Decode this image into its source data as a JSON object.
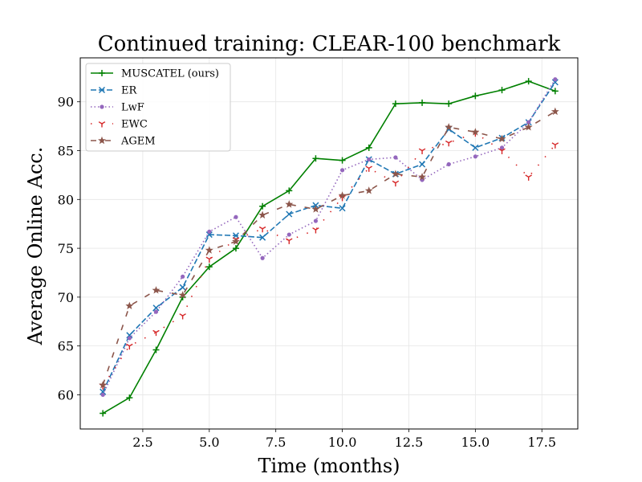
{
  "chart_data": {
    "type": "line",
    "title": "Continued training: CLEAR-100 benchmark",
    "xlabel": "Time (months)",
    "ylabel": "Average Online Acc.",
    "xlim": [
      0.15,
      18.85
    ],
    "ylim": [
      56.5,
      94.5
    ],
    "xticks": [
      2.5,
      5.0,
      7.5,
      10.0,
      12.5,
      15.0,
      17.5
    ],
    "xtick_labels": [
      "2.5",
      "5.0",
      "7.5",
      "10.0",
      "12.5",
      "15.0",
      "17.5"
    ],
    "yticks": [
      60,
      65,
      70,
      75,
      80,
      85,
      90
    ],
    "ytick_labels": [
      "60",
      "65",
      "70",
      "75",
      "80",
      "85",
      "90"
    ],
    "grid": true,
    "legend_position": "top-left",
    "x": [
      1,
      2,
      3,
      4,
      5,
      6,
      7,
      8,
      9,
      10,
      11,
      12,
      13,
      14,
      15,
      16,
      17,
      18
    ],
    "series": [
      {
        "name": "MUSCATEL (ours)",
        "color": "#008000",
        "dash": "solid",
        "marker": "plus",
        "values": [
          58.1,
          59.7,
          64.6,
          70.0,
          73.1,
          75.0,
          79.3,
          80.9,
          84.2,
          84.0,
          85.3,
          89.8,
          89.9,
          89.8,
          90.6,
          91.2,
          92.1,
          91.1
        ]
      },
      {
        "name": "ER",
        "color": "#1f77b4",
        "dash": "dashed",
        "marker": "x",
        "values": [
          60.3,
          66.1,
          68.9,
          71.0,
          76.4,
          76.3,
          76.1,
          78.5,
          79.4,
          79.1,
          84.1,
          82.6,
          83.6,
          87.2,
          85.3,
          86.3,
          87.9,
          92.0
        ]
      },
      {
        "name": "LwF",
        "color": "#9467bd",
        "dash": "dotted",
        "marker": "dot",
        "values": [
          60.0,
          65.8,
          68.5,
          72.1,
          76.7,
          78.2,
          74.0,
          76.4,
          77.8,
          83.0,
          84.1,
          84.3,
          82.0,
          83.6,
          84.4,
          85.3,
          87.9,
          92.3
        ]
      },
      {
        "name": "EWC",
        "color": "#d62728",
        "dash": "dashdot",
        "marker": "tri",
        "values": [
          60.9,
          65.0,
          66.4,
          68.1,
          73.9,
          75.9,
          77.0,
          75.8,
          76.9,
          80.2,
          83.2,
          81.7,
          85.0,
          85.8,
          86.8,
          85.0,
          82.3,
          85.6
        ]
      },
      {
        "name": "AGEM",
        "color": "#8c564b",
        "dash": "loosedash",
        "marker": "star",
        "values": [
          61.0,
          69.1,
          70.7,
          70.2,
          74.8,
          75.7,
          78.4,
          79.5,
          79.0,
          80.4,
          80.9,
          82.6,
          82.3,
          87.4,
          86.9,
          86.2,
          87.4,
          89.0
        ]
      }
    ]
  }
}
